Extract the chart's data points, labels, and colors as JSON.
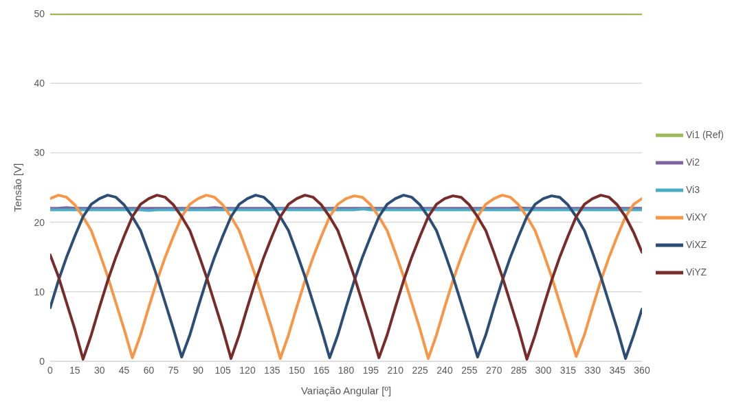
{
  "chart_data": {
    "type": "line",
    "xlabel": "Variação Angular [º]",
    "ylabel": "Tensão [V]",
    "x": [
      0,
      5,
      10,
      15,
      20,
      25,
      30,
      35,
      40,
      45,
      50,
      55,
      60,
      65,
      70,
      75,
      80,
      85,
      90,
      95,
      100,
      105,
      110,
      115,
      120,
      125,
      130,
      135,
      140,
      145,
      150,
      155,
      160,
      165,
      170,
      175,
      180,
      185,
      190,
      195,
      200,
      205,
      210,
      215,
      220,
      225,
      230,
      235,
      240,
      245,
      250,
      255,
      260,
      265,
      270,
      275,
      280,
      285,
      290,
      295,
      300,
      305,
      310,
      315,
      320,
      325,
      330,
      335,
      340,
      345,
      350,
      355,
      360
    ],
    "xlim": [
      0,
      360
    ],
    "xticks": [
      0,
      15,
      30,
      45,
      60,
      75,
      90,
      105,
      120,
      135,
      150,
      165,
      180,
      195,
      210,
      225,
      240,
      255,
      270,
      285,
      300,
      315,
      330,
      345,
      360
    ],
    "ylim": [
      0,
      50
    ],
    "yticks": [
      0,
      10,
      20,
      30,
      40,
      50
    ],
    "grid": "y",
    "legend": "right",
    "marker": "none",
    "line_style": "solid",
    "series": [
      {
        "name": "Vi1 (Ref)",
        "color": "#9bbb59",
        "values": [
          50,
          50,
          50,
          50,
          50,
          50,
          50,
          50,
          50,
          50,
          50,
          50,
          50,
          50,
          50,
          50,
          50,
          50,
          50,
          50,
          50,
          50,
          50,
          50,
          50,
          50,
          50,
          50,
          50,
          50,
          50,
          50,
          50,
          50,
          50,
          50,
          50,
          50,
          50,
          50,
          50,
          50,
          50,
          50,
          50,
          50,
          50,
          50,
          50,
          50,
          50,
          50,
          50,
          50,
          50,
          50,
          50,
          50,
          50,
          50,
          50,
          50,
          50,
          50,
          50,
          50,
          50,
          50,
          50,
          50,
          50,
          50,
          50
        ]
      },
      {
        "name": "Vi2",
        "color": "#8064a2",
        "values": [
          22,
          22,
          22.1,
          22,
          22,
          22,
          22,
          22,
          22,
          22,
          22,
          22,
          22,
          22,
          22,
          22,
          22,
          22,
          22,
          22,
          22.1,
          22,
          22,
          22,
          22,
          22,
          22,
          22,
          22,
          22,
          22,
          22,
          22,
          22,
          22,
          22,
          22,
          22,
          22,
          22,
          22,
          22,
          22,
          22,
          22,
          22,
          22,
          22,
          22,
          22,
          22,
          22,
          22,
          22,
          22,
          22,
          22,
          22.1,
          22,
          22,
          22,
          22,
          22,
          22,
          22,
          22,
          22,
          22,
          22,
          22,
          22,
          22,
          22
        ]
      },
      {
        "name": "Vi3",
        "color": "#4bacc6",
        "values": [
          21.8,
          21.8,
          21.8,
          21.8,
          21.8,
          21.8,
          21.8,
          21.8,
          21.8,
          21.8,
          21.8,
          21.8,
          21.7,
          21.8,
          21.8,
          21.8,
          21.8,
          21.8,
          21.8,
          21.8,
          21.8,
          21.8,
          21.8,
          21.8,
          21.8,
          21.8,
          21.8,
          21.8,
          21.9,
          21.8,
          21.8,
          21.8,
          21.8,
          21.8,
          21.8,
          21.8,
          21.8,
          21.8,
          21.9,
          21.8,
          21.8,
          21.8,
          21.8,
          21.8,
          21.8,
          21.8,
          21.8,
          21.8,
          21.8,
          21.8,
          21.8,
          21.8,
          21.8,
          21.8,
          21.8,
          21.8,
          21.8,
          21.8,
          21.8,
          21.8,
          21.8,
          21.8,
          21.8,
          21.8,
          21.8,
          21.8,
          21.8,
          21.8,
          21.8,
          21.8,
          21.8,
          21.8,
          21.8
        ]
      },
      {
        "name": "ViXY",
        "color": "#f79646",
        "values": [
          23.4,
          23.9,
          23.6,
          22.5,
          20.8,
          18.8,
          15.6,
          12.2,
          8.4,
          4.6,
          0.5,
          3.8,
          7.8,
          11.6,
          15,
          18,
          20.8,
          22.6,
          23.4,
          23.9,
          23.6,
          22.5,
          20.8,
          18.8,
          15.6,
          12.2,
          8.4,
          4.6,
          0.4,
          3.8,
          7.8,
          11.6,
          15,
          18,
          20.8,
          22.6,
          23.4,
          23.8,
          23.6,
          22.5,
          20.8,
          18.8,
          15.6,
          12.2,
          8.4,
          4.6,
          0.4,
          3.8,
          7.8,
          11.6,
          15,
          18,
          20.8,
          22.6,
          23.4,
          23.9,
          23.6,
          22.5,
          20.8,
          18.8,
          15.6,
          12.2,
          8.4,
          4.6,
          0.7,
          3.8,
          7.8,
          11.6,
          15,
          18,
          20.8,
          22.6,
          23.4
        ]
      },
      {
        "name": "ViXZ",
        "color": "#2c4d75",
        "values": [
          7.7,
          11.6,
          15,
          18,
          20.8,
          22.6,
          23.4,
          23.9,
          23.6,
          22.5,
          20.8,
          18.8,
          15.6,
          12.2,
          8.4,
          4.6,
          0.6,
          3.8,
          7.8,
          11.6,
          15,
          18,
          20.8,
          22.6,
          23.4,
          23.9,
          23.6,
          22.5,
          20.8,
          18.8,
          15.6,
          12.2,
          8.4,
          4.6,
          0.5,
          3.8,
          7.8,
          11.6,
          15,
          18,
          20.8,
          22.6,
          23.4,
          23.9,
          23.6,
          22.5,
          20.8,
          18.8,
          15.6,
          12.2,
          8.4,
          4.6,
          0.6,
          3.8,
          7.8,
          11.6,
          15,
          18,
          20.8,
          22.6,
          23.4,
          23.8,
          23.6,
          22.5,
          20.8,
          18.8,
          15.6,
          12.2,
          8.4,
          4.6,
          0.4,
          3.8,
          7.5
        ]
      },
      {
        "name": "ViYZ",
        "color": "#772c2a",
        "values": [
          15.3,
          12.2,
          8.4,
          4.6,
          0.3,
          3.8,
          7.8,
          11.6,
          15,
          18,
          20.8,
          22.6,
          23.4,
          23.9,
          23.6,
          22.5,
          20.8,
          18.8,
          15.6,
          12.2,
          8.4,
          4.6,
          0.4,
          3.8,
          7.8,
          11.6,
          15,
          18,
          20.8,
          22.6,
          23.4,
          23.9,
          23.6,
          22.5,
          20.8,
          18.8,
          15.6,
          12.2,
          8.4,
          4.6,
          0.5,
          3.8,
          7.8,
          11.6,
          15,
          18,
          20.8,
          22.6,
          23.4,
          23.8,
          23.6,
          22.5,
          20.8,
          18.8,
          15.6,
          12.2,
          8.4,
          4.6,
          0.3,
          3.8,
          7.8,
          11.6,
          15,
          18,
          20.8,
          22.6,
          23.4,
          23.9,
          23.6,
          22.5,
          20.8,
          18.5,
          15.7
        ]
      }
    ]
  }
}
